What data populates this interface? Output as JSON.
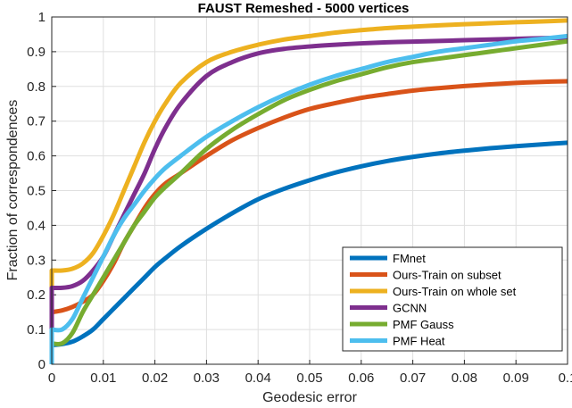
{
  "chart_data": {
    "type": "line",
    "title": "FAUST Remeshed - 5000 vertices",
    "xlabel": "Geodesic error",
    "ylabel": "Fraction of correspondences",
    "xlim": [
      0,
      0.1
    ],
    "ylim": [
      0,
      1
    ],
    "xticks": [
      "0",
      "0.01",
      "0.02",
      "0.03",
      "0.04",
      "0.05",
      "0.06",
      "0.07",
      "0.08",
      "0.09",
      "0.1"
    ],
    "yticks": [
      "0",
      "0.1",
      "0.2",
      "0.3",
      "0.4",
      "0.5",
      "0.6",
      "0.7",
      "0.8",
      "0.9",
      "1"
    ],
    "grid": true,
    "legend_position": "bottom-right",
    "x": [
      0,
      0.002,
      0.004,
      0.006,
      0.008,
      0.01,
      0.012,
      0.014,
      0.016,
      0.018,
      0.02,
      0.022,
      0.025,
      0.03,
      0.035,
      0.04,
      0.045,
      0.05,
      0.055,
      0.06,
      0.065,
      0.07,
      0.075,
      0.08,
      0.085,
      0.09,
      0.095,
      0.1
    ],
    "series": [
      {
        "name": "FMnet",
        "color": "#0072BD",
        "values": [
          0.055,
          0.058,
          0.065,
          0.08,
          0.1,
          0.13,
          0.16,
          0.19,
          0.22,
          0.25,
          0.28,
          0.305,
          0.34,
          0.39,
          0.435,
          0.475,
          0.505,
          0.53,
          0.552,
          0.57,
          0.585,
          0.597,
          0.607,
          0.615,
          0.622,
          0.628,
          0.633,
          0.638
        ]
      },
      {
        "name": "Ours-Train on subset",
        "color": "#D95319",
        "values": [
          0.15,
          0.155,
          0.165,
          0.18,
          0.2,
          0.24,
          0.29,
          0.35,
          0.4,
          0.45,
          0.49,
          0.52,
          0.55,
          0.6,
          0.645,
          0.68,
          0.71,
          0.735,
          0.752,
          0.767,
          0.778,
          0.788,
          0.795,
          0.801,
          0.806,
          0.81,
          0.813,
          0.815
        ]
      },
      {
        "name": "Ours-Train on whole set",
        "color": "#EDB120",
        "values": [
          0.27,
          0.27,
          0.275,
          0.29,
          0.32,
          0.37,
          0.43,
          0.5,
          0.57,
          0.64,
          0.7,
          0.75,
          0.81,
          0.87,
          0.9,
          0.92,
          0.935,
          0.945,
          0.955,
          0.962,
          0.968,
          0.972,
          0.976,
          0.979,
          0.982,
          0.985,
          0.987,
          0.99
        ]
      },
      {
        "name": "GCNN",
        "color": "#7E2F8E",
        "values": [
          0.22,
          0.22,
          0.225,
          0.24,
          0.27,
          0.31,
          0.37,
          0.43,
          0.49,
          0.55,
          0.62,
          0.68,
          0.75,
          0.83,
          0.87,
          0.895,
          0.908,
          0.915,
          0.92,
          0.924,
          0.927,
          0.929,
          0.931,
          0.933,
          0.935,
          0.937,
          0.939,
          0.94
        ]
      },
      {
        "name": "PMF Gauss",
        "color": "#77AC30",
        "values": [
          0.06,
          0.06,
          0.09,
          0.15,
          0.2,
          0.25,
          0.3,
          0.35,
          0.4,
          0.44,
          0.48,
          0.51,
          0.55,
          0.62,
          0.675,
          0.72,
          0.76,
          0.79,
          0.815,
          0.835,
          0.855,
          0.87,
          0.88,
          0.89,
          0.9,
          0.91,
          0.92,
          0.93
        ]
      },
      {
        "name": "PMF Heat",
        "color": "#4DBEEE",
        "values": [
          0.1,
          0.1,
          0.13,
          0.19,
          0.25,
          0.31,
          0.37,
          0.42,
          0.46,
          0.5,
          0.535,
          0.565,
          0.6,
          0.655,
          0.7,
          0.74,
          0.775,
          0.805,
          0.83,
          0.85,
          0.87,
          0.885,
          0.9,
          0.91,
          0.92,
          0.93,
          0.937,
          0.945
        ]
      }
    ]
  }
}
